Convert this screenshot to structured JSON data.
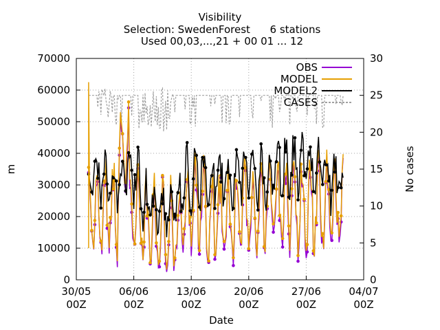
{
  "chart_data": {
    "type": "line",
    "title": "Visibility",
    "subtitle_1": "Selection: SwedenForest      6 stations",
    "subtitle_2": "Used 00,03,...,21 + 00 01 ... 12",
    "xlabel": "Date",
    "ylabel": "m",
    "y2label": "No cases",
    "ylim": [
      0,
      70000
    ],
    "y2lim": [
      0,
      30
    ],
    "xlim_days": [
      0,
      35
    ],
    "yticks": [
      "0",
      "10000",
      "20000",
      "30000",
      "40000",
      "50000",
      "60000",
      "70000"
    ],
    "y2ticks": [
      "0",
      "5",
      "10",
      "15",
      "20",
      "25",
      "30"
    ],
    "xticks": [
      {
        "day": 0,
        "l1": "30/05",
        "l2": "00Z"
      },
      {
        "day": 7,
        "l1": "06/06",
        "l2": "00Z"
      },
      {
        "day": 14,
        "l1": "13/06",
        "l2": "00Z"
      },
      {
        "day": 21,
        "l1": "20/06",
        "l2": "00Z"
      },
      {
        "day": 28,
        "l1": "27/06",
        "l2": "00Z"
      },
      {
        "day": 35,
        "l1": "04/07",
        "l2": "00Z"
      }
    ],
    "grid": true,
    "legend_position": "top-right",
    "series": [
      {
        "name": "OBS",
        "color": "#9400d3"
      },
      {
        "name": "MODEL",
        "color": "#e69f00"
      },
      {
        "name": "MODEL2",
        "color": "#000000"
      },
      {
        "name": "CASES",
        "color": "#a0a0a0"
      }
    ]
  }
}
